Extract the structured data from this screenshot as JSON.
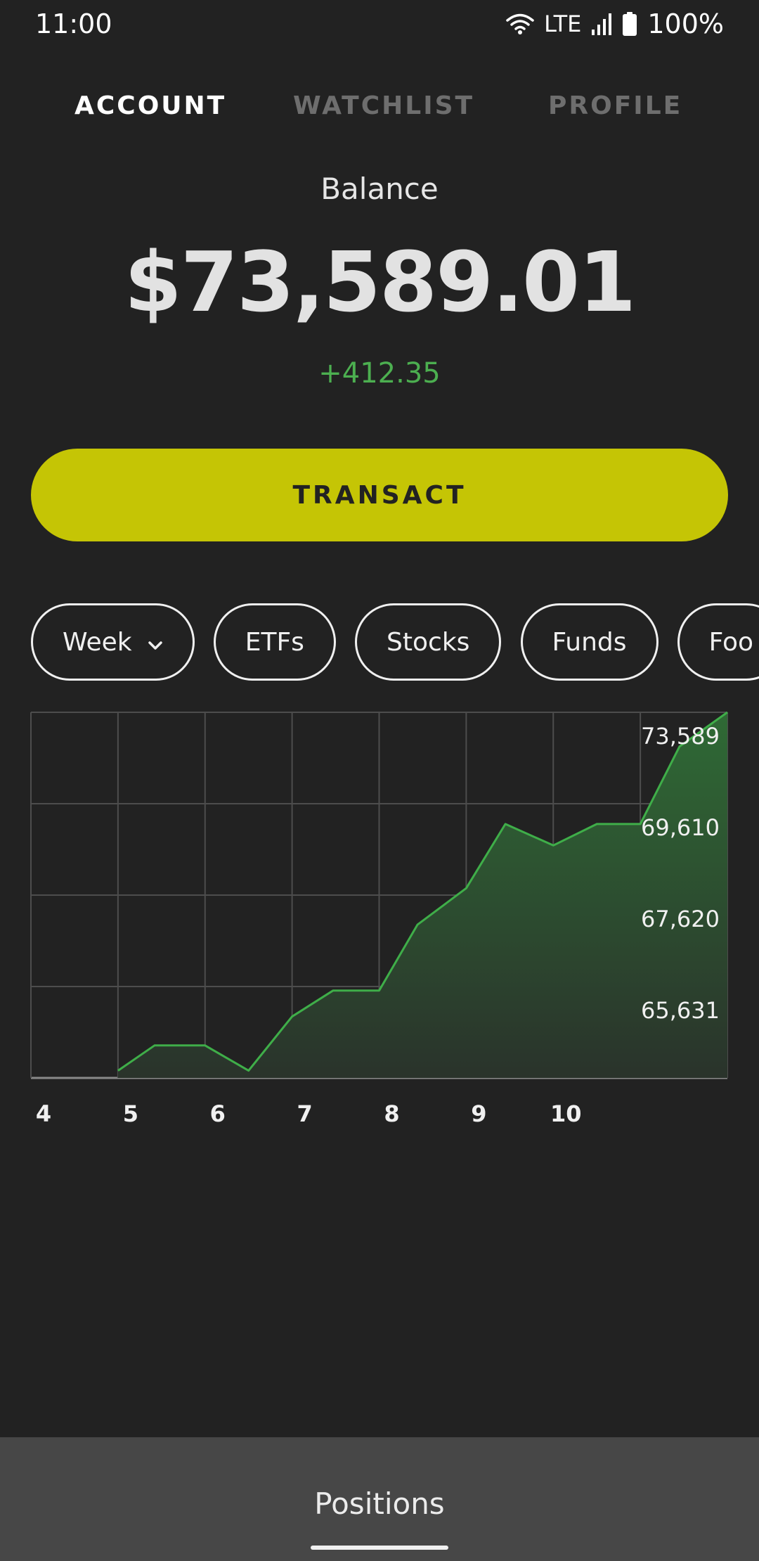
{
  "status_bar": {
    "time": "11:00",
    "network": "LTE",
    "battery": "100%",
    "icons": [
      "wifi-icon",
      "signal-icon",
      "battery-icon"
    ]
  },
  "tabs": [
    {
      "label": "ACCOUNT",
      "active": true
    },
    {
      "label": "WATCHLIST",
      "active": false
    },
    {
      "label": "PROFILE",
      "active": false
    }
  ],
  "balance": {
    "label": "Balance",
    "value": "$73,589.01",
    "change": "+412.35",
    "change_color": "#4caf50"
  },
  "transact_label": "TRANSACT",
  "accent_color": "#c5c505",
  "filters": {
    "period": "Week",
    "period_icon": "chevron-down-icon",
    "chips": [
      "ETFs",
      "Stocks",
      "Funds",
      "Foo"
    ]
  },
  "chart_data": {
    "type": "area",
    "title": "",
    "xlabel": "",
    "ylabel": "",
    "x_ticks": [
      "4",
      "5",
      "6",
      "7",
      "8",
      "9",
      "10"
    ],
    "y_ticks": [
      "73,589",
      "69,610",
      "67,620",
      "65,631"
    ],
    "grid": true,
    "line_color": "#3fae49",
    "x": [
      4.0,
      4.42,
      5.0,
      5.5,
      6.0,
      6.47,
      7.0,
      7.44,
      8.0,
      8.45,
      9.0,
      9.5,
      10.0,
      10.45,
      11.0
    ],
    "y": [
      61850,
      62850,
      62850,
      61850,
      64000,
      65030,
      65030,
      67650,
      69100,
      71650,
      70800,
      71650,
      71650,
      74730,
      76090
    ]
  },
  "bottom_nav": {
    "label": "Positions"
  }
}
